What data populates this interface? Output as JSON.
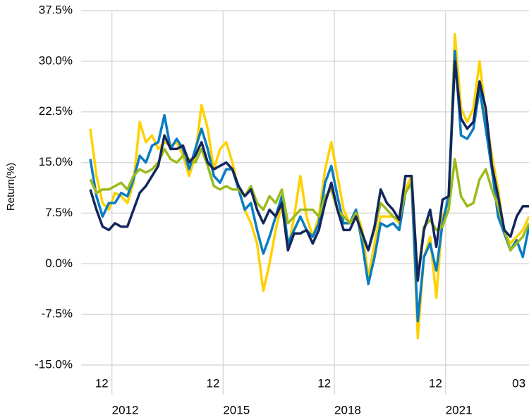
{
  "chart_data": {
    "type": "line",
    "y_label": "Return(%)",
    "x": [
      "2011-06",
      "2011-08",
      "2011-10",
      "2011-12",
      "2012-02",
      "2012-04",
      "2012-06",
      "2012-08",
      "2012-10",
      "2012-12",
      "2013-02",
      "2013-04",
      "2013-06",
      "2013-08",
      "2013-10",
      "2013-12",
      "2014-02",
      "2014-04",
      "2014-06",
      "2014-08",
      "2014-10",
      "2014-12",
      "2015-02",
      "2015-04",
      "2015-06",
      "2015-08",
      "2015-10",
      "2015-12",
      "2016-02",
      "2016-04",
      "2016-06",
      "2016-08",
      "2016-10",
      "2016-12",
      "2017-02",
      "2017-04",
      "2017-06",
      "2017-08",
      "2017-10",
      "2017-12",
      "2018-02",
      "2018-04",
      "2018-06",
      "2018-08",
      "2018-10",
      "2018-12",
      "2019-02",
      "2019-04",
      "2019-06",
      "2019-08",
      "2019-10",
      "2019-12",
      "2020-02",
      "2020-04",
      "2020-06",
      "2020-08",
      "2020-10",
      "2020-12",
      "2021-02",
      "2021-04",
      "2021-06",
      "2021-08",
      "2021-10",
      "2021-12",
      "2022-02",
      "2022-04",
      "2022-06",
      "2022-08",
      "2022-10",
      "2022-12",
      "2023-02",
      "2023-04"
    ],
    "series": [
      {
        "color": "#ffd100",
        "values": [
          20,
          13,
          9,
          8,
          10.5,
          10,
          9,
          12,
          21,
          18,
          19,
          17,
          18,
          17.5,
          18,
          16,
          13,
          16,
          23.5,
          20,
          14,
          17,
          18,
          15,
          11,
          8,
          6,
          3,
          -4,
          0,
          5,
          9,
          2,
          7,
          13,
          7,
          4,
          7,
          14,
          18,
          13,
          8,
          6,
          8,
          5,
          -2,
          3,
          7,
          7,
          7,
          6,
          11,
          13,
          -11,
          1,
          4,
          -5,
          7,
          9,
          34,
          23,
          21,
          23,
          30,
          22,
          16,
          11,
          4.5,
          3,
          4,
          5,
          7
        ]
      },
      {
        "color": "#0a7cc2",
        "values": [
          15.5,
          10,
          7,
          9,
          9,
          10.5,
          10,
          12.5,
          16,
          15,
          17.5,
          18,
          22,
          17,
          18.5,
          17,
          14,
          17,
          20,
          17,
          13,
          12,
          14,
          14,
          11,
          8,
          9,
          5,
          1.5,
          4,
          7,
          10,
          3,
          5,
          7,
          5,
          4,
          6,
          12,
          14.5,
          10,
          6,
          6,
          8,
          3,
          -3,
          1,
          6,
          5.5,
          6,
          5,
          10.5,
          12,
          -8.5,
          1,
          3,
          -1,
          6,
          10,
          31.5,
          19,
          18.5,
          20,
          26,
          20,
          14,
          7,
          4.5,
          2,
          3.5,
          1,
          5.5
        ]
      },
      {
        "color": "#9bbb1b",
        "values": [
          12.5,
          10.5,
          11,
          11,
          11.5,
          12,
          11,
          13,
          14,
          13.5,
          14,
          15,
          17,
          15.5,
          15,
          16,
          15.5,
          15,
          17,
          14.5,
          11.5,
          11,
          11.5,
          11,
          11,
          10,
          11.5,
          9,
          8,
          10,
          9,
          11,
          6,
          7,
          8,
          8,
          8,
          7,
          10,
          11,
          8,
          7,
          6,
          7.5,
          4,
          2,
          5,
          9,
          8,
          7,
          6.5,
          10.5,
          12,
          -2,
          5.5,
          6.5,
          5,
          5.5,
          8,
          15.5,
          10,
          8.5,
          9,
          12.5,
          14,
          11,
          8.5,
          5,
          2,
          3,
          4,
          6
        ]
      },
      {
        "color": "#13275e",
        "values": [
          11,
          8,
          5.5,
          5,
          6,
          5.5,
          5.5,
          8,
          10.5,
          11.5,
          13,
          14.5,
          19,
          17,
          17,
          17.5,
          15,
          16,
          18,
          15,
          14,
          14.5,
          15,
          14,
          11.5,
          10,
          11,
          8,
          6,
          8,
          7,
          9,
          2,
          4.5,
          4.5,
          5,
          3,
          5,
          9,
          12,
          8,
          5,
          5,
          7,
          4.5,
          2,
          5.5,
          11,
          9,
          8,
          6.5,
          13,
          13,
          -2.5,
          5,
          8,
          2.5,
          9.5,
          10,
          30,
          21.5,
          20,
          21,
          27,
          23,
          14.5,
          10,
          5,
          4,
          7,
          8.5,
          8.5
        ]
      }
    ],
    "xlim": [
      "2011-06",
      "2023-04"
    ],
    "xticks": [
      {
        "value": "2011-12",
        "label": "12"
      },
      {
        "value": "2014-12",
        "label": "12"
      },
      {
        "value": "2017-12",
        "label": "12"
      },
      {
        "value": "2020-12",
        "label": "12"
      },
      {
        "value": "2023-03",
        "label": "03"
      }
    ],
    "xticks_year": [
      {
        "value": "2012-01",
        "label": "2012"
      },
      {
        "value": "2015-01",
        "label": "2015"
      },
      {
        "value": "2018-01",
        "label": "2018"
      },
      {
        "value": "2021-01",
        "label": "2021"
      }
    ],
    "ylim": [
      -15,
      37.5
    ],
    "yticks": [
      {
        "value": -15,
        "label": "-15.0%"
      },
      {
        "value": -7.5,
        "label": "-7.5%"
      },
      {
        "value": 0,
        "label": "0.0%"
      },
      {
        "value": 7.5,
        "label": "7.5%"
      },
      {
        "value": 15,
        "label": "15.0%"
      },
      {
        "value": 22.5,
        "label": "22.5%"
      },
      {
        "value": 30,
        "label": "30.0%"
      },
      {
        "value": 37.5,
        "label": "37.5%"
      }
    ],
    "grid": true
  }
}
